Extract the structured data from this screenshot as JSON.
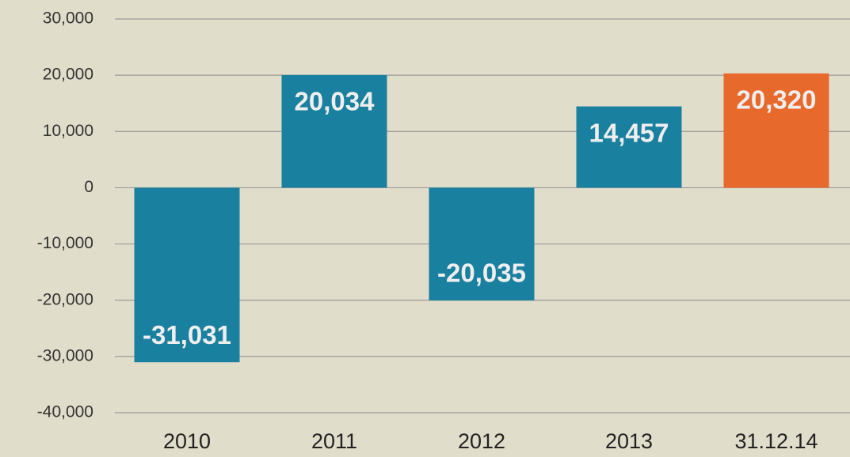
{
  "chart_data": {
    "type": "bar",
    "categories": [
      "2010",
      "2011",
      "2012",
      "2013",
      "31.12.14"
    ],
    "values": [
      -31031,
      20034,
      -20035,
      14457,
      20320
    ],
    "value_labels": [
      "-31,031",
      "20,034",
      "-20,035",
      "14,457",
      "20,320"
    ],
    "colors": [
      "#1a809f",
      "#1a809f",
      "#1a809f",
      "#1a809f",
      "#e8692c"
    ],
    "ylim": [
      -40000,
      30000
    ],
    "yticks": [
      {
        "value": -40000,
        "label": "-40,000"
      },
      {
        "value": -30000,
        "label": "-30,000"
      },
      {
        "value": -20000,
        "label": "-20,000"
      },
      {
        "value": -10000,
        "label": "-10,000"
      },
      0,
      {
        "value": 10000,
        "label": "10,000"
      },
      {
        "value": 20000,
        "label": "20,000"
      },
      {
        "value": 30000,
        "label": "30,000"
      }
    ],
    "grid": true
  }
}
